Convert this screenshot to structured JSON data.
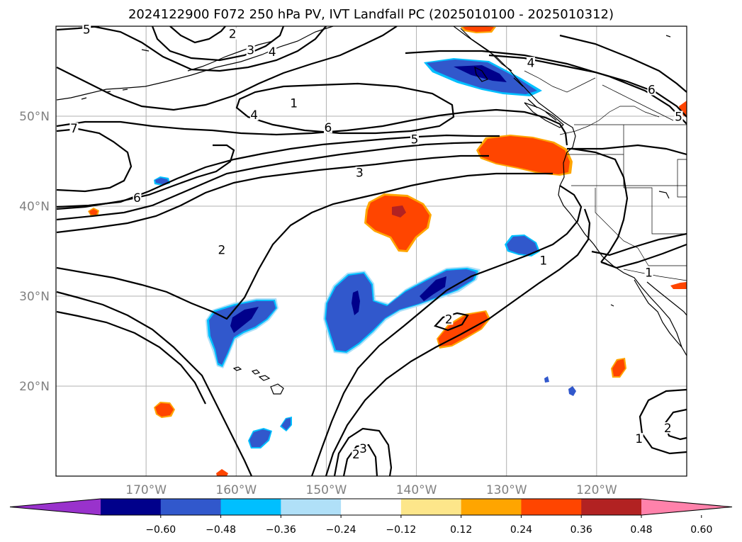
{
  "title": "2024122900 F072 250 hPa PV, IVT Landfall PC (2025010100 - 2025010312)",
  "map": {
    "lon_range": [
      -180,
      -110
    ],
    "lat_range": [
      10,
      60
    ],
    "lon_ticks": [
      {
        "value": -170,
        "label": "170°W"
      },
      {
        "value": -160,
        "label": "160°W"
      },
      {
        "value": -150,
        "label": "150°W"
      },
      {
        "value": -140,
        "label": "140°W"
      },
      {
        "value": -130,
        "label": "130°W"
      },
      {
        "value": -120,
        "label": "120°W"
      }
    ],
    "lat_ticks": [
      {
        "value": 20,
        "label": "20°N"
      },
      {
        "value": 30,
        "label": "30°N"
      },
      {
        "value": 40,
        "label": "40°N"
      },
      {
        "value": 50,
        "label": "50°N"
      }
    ],
    "grid": true,
    "grid_color": "#b0b0b0",
    "contour_labels": [
      {
        "lon": -176.6,
        "lat": 59.5,
        "text": "5"
      },
      {
        "lon": -160.4,
        "lat": 59.0,
        "text": "2"
      },
      {
        "lon": -158.4,
        "lat": 57.2,
        "text": "3"
      },
      {
        "lon": -156.0,
        "lat": 57.0,
        "text": "4"
      },
      {
        "lon": -178.0,
        "lat": 48.5,
        "text": "7"
      },
      {
        "lon": -171.0,
        "lat": 40.8,
        "text": "6"
      },
      {
        "lon": -158.0,
        "lat": 50.0,
        "text": "4"
      },
      {
        "lon": -153.6,
        "lat": 51.3,
        "text": "1"
      },
      {
        "lon": -149.8,
        "lat": 48.6,
        "text": "6"
      },
      {
        "lon": -140.2,
        "lat": 47.3,
        "text": "5"
      },
      {
        "lon": -146.3,
        "lat": 43.6,
        "text": "3"
      },
      {
        "lon": -161.6,
        "lat": 35.0,
        "text": "2"
      },
      {
        "lon": -127.3,
        "lat": 55.8,
        "text": "4"
      },
      {
        "lon": -113.9,
        "lat": 52.8,
        "text": "6"
      },
      {
        "lon": -110.9,
        "lat": 49.8,
        "text": "5"
      },
      {
        "lon": -125.9,
        "lat": 33.8,
        "text": "1"
      },
      {
        "lon": -114.2,
        "lat": 32.5,
        "text": "1"
      },
      {
        "lon": -136.4,
        "lat": 27.3,
        "text": "2"
      },
      {
        "lon": -146.7,
        "lat": 12.3,
        "text": "2"
      },
      {
        "lon": -145.9,
        "lat": 12.9,
        "text": "3"
      },
      {
        "lon": -115.3,
        "lat": 14.0,
        "text": "1"
      },
      {
        "lon": -112.1,
        "lat": 15.2,
        "text": "2"
      }
    ]
  },
  "colorbar": {
    "colors": [
      "#9932cc",
      "#00008b",
      "#3158cc",
      "#00bfff",
      "#b0e0f8",
      "#ffffff",
      "#fde68a",
      "#ffa500",
      "#ff4500",
      "#b22222",
      "#ff82ab"
    ],
    "ticks": [
      "−0.60",
      "−0.48",
      "−0.36",
      "−0.24",
      "−0.12",
      "0.12",
      "0.24",
      "0.36",
      "0.48",
      "0.60"
    ]
  }
}
